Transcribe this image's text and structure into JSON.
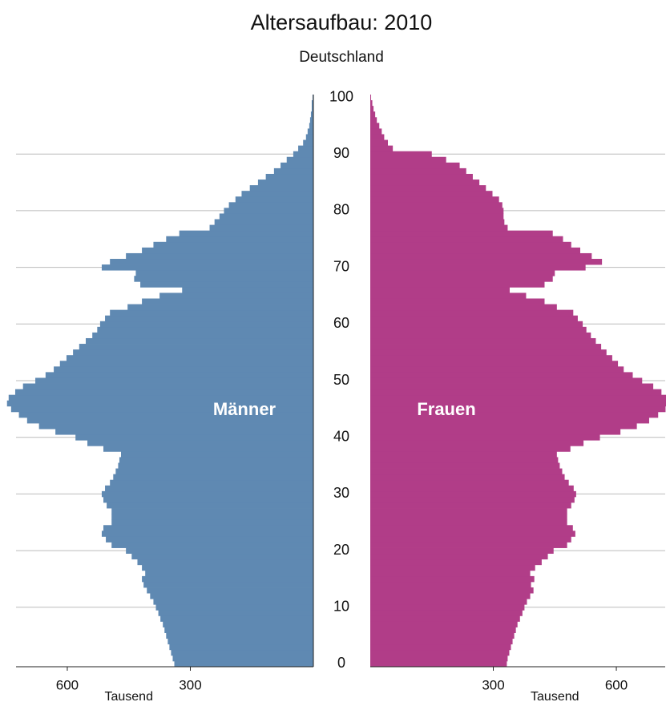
{
  "chart_data": {
    "type": "pyramid",
    "title": "Altersaufbau: 2010",
    "subtitle": "Deutschland",
    "categories": [
      0,
      1,
      2,
      3,
      4,
      5,
      6,
      7,
      8,
      9,
      10,
      11,
      12,
      13,
      14,
      15,
      16,
      17,
      18,
      19,
      20,
      21,
      22,
      23,
      24,
      25,
      26,
      27,
      28,
      29,
      30,
      31,
      32,
      33,
      34,
      35,
      36,
      37,
      38,
      39,
      40,
      41,
      42,
      43,
      44,
      45,
      46,
      47,
      48,
      49,
      50,
      51,
      52,
      53,
      54,
      55,
      56,
      57,
      58,
      59,
      60,
      61,
      62,
      63,
      64,
      65,
      66,
      67,
      68,
      69,
      70,
      71,
      72,
      73,
      74,
      75,
      76,
      77,
      78,
      79,
      80,
      81,
      82,
      83,
      84,
      85,
      86,
      87,
      88,
      89,
      90,
      91,
      92,
      93,
      94,
      95,
      96,
      97,
      98,
      99,
      100
    ],
    "series": [
      {
        "name": "Männer",
        "color": "#5f89b2",
        "values": [
          339,
          343,
          347,
          351,
          355,
          359,
          363,
          367,
          373,
          378,
          384,
          390,
          398,
          406,
          414,
          418,
          410,
          418,
          429,
          443,
          457,
          492,
          506,
          516,
          512,
          492,
          492,
          492,
          504,
          512,
          516,
          508,
          496,
          488,
          482,
          476,
          473,
          469,
          512,
          551,
          580,
          629,
          669,
          698,
          718,
          737,
          747,
          743,
          727,
          708,
          678,
          653,
          633,
          618,
          602,
          586,
          571,
          555,
          539,
          527,
          520,
          508,
          496,
          453,
          418,
          375,
          320,
          422,
          437,
          433,
          516,
          496,
          457,
          418,
          390,
          359,
          327,
          253,
          241,
          229,
          218,
          206,
          190,
          175,
          155,
          135,
          116,
          96,
          80,
          65,
          49,
          37,
          25,
          18,
          14,
          10,
          8,
          6,
          4,
          4,
          2
        ]
      },
      {
        "name": "Frauen",
        "color": "#b13d88",
        "values": [
          333,
          335,
          339,
          343,
          347,
          351,
          355,
          359,
          365,
          371,
          376,
          382,
          390,
          398,
          392,
          400,
          390,
          402,
          418,
          433,
          447,
          480,
          490,
          500,
          494,
          480,
          480,
          480,
          490,
          498,
          502,
          496,
          484,
          474,
          468,
          462,
          458,
          455,
          488,
          520,
          560,
          610,
          650,
          680,
          702,
          720,
          728,
          722,
          710,
          690,
          663,
          640,
          618,
          604,
          590,
          576,
          563,
          550,
          538,
          527,
          518,
          506,
          495,
          455,
          425,
          380,
          340,
          425,
          445,
          450,
          525,
          565,
          540,
          512,
          490,
          470,
          445,
          335,
          327,
          325,
          325,
          322,
          314,
          298,
          282,
          266,
          250,
          234,
          218,
          185,
          150,
          55,
          43,
          34,
          28,
          22,
          16,
          12,
          8,
          5,
          2
        ]
      }
    ],
    "ylim": [
      -0.5,
      100.5
    ],
    "yticks": [
      0,
      10,
      20,
      30,
      40,
      50,
      60,
      70,
      80,
      90,
      100
    ],
    "xlim": [
      0,
      725
    ],
    "xticks": [
      300,
      600
    ],
    "xlabel": "Tausend",
    "grid": true
  }
}
